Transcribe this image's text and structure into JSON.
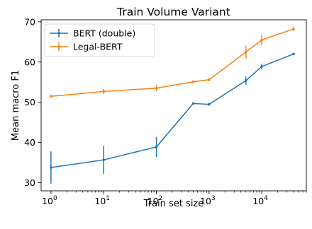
{
  "chart_data": {
    "type": "line",
    "title": "Train Volume Variant",
    "xlabel": "Train set size",
    "ylabel": "Mean macro F1",
    "xscale": "log",
    "xlim": [
      0.65,
      70000
    ],
    "ylim": [
      28,
      70.5
    ],
    "xticks": [
      {
        "value": 1,
        "base": "10",
        "exp": "0"
      },
      {
        "value": 10,
        "base": "10",
        "exp": "1"
      },
      {
        "value": 100,
        "base": "10",
        "exp": "2"
      },
      {
        "value": 1000,
        "base": "10",
        "exp": "3"
      },
      {
        "value": 10000,
        "base": "10",
        "exp": "4"
      }
    ],
    "yticks": [
      30,
      40,
      50,
      60,
      70
    ],
    "grid": false,
    "legend_position": "top-left",
    "series": [
      {
        "name": "BERT (double)",
        "color": "#1f77b4",
        "x": [
          1,
          10,
          100,
          500,
          1000,
          5000,
          10000,
          40000
        ],
        "y": [
          33.8,
          35.7,
          38.9,
          49.7,
          49.5,
          55.4,
          58.9,
          62.0
        ],
        "err": [
          4.0,
          3.5,
          2.5,
          0.3,
          0.3,
          1.0,
          0.7,
          0.3
        ]
      },
      {
        "name": "Legal-BERT",
        "color": "#ff7f0e",
        "x": [
          1,
          10,
          100,
          500,
          1000,
          5000,
          10000,
          40000
        ],
        "y": [
          51.5,
          52.7,
          53.5,
          55.1,
          55.6,
          62.5,
          65.5,
          68.2
        ],
        "err": [
          0.4,
          0.6,
          0.8,
          0.3,
          0.4,
          1.6,
          1.3,
          0.5
        ]
      }
    ]
  }
}
